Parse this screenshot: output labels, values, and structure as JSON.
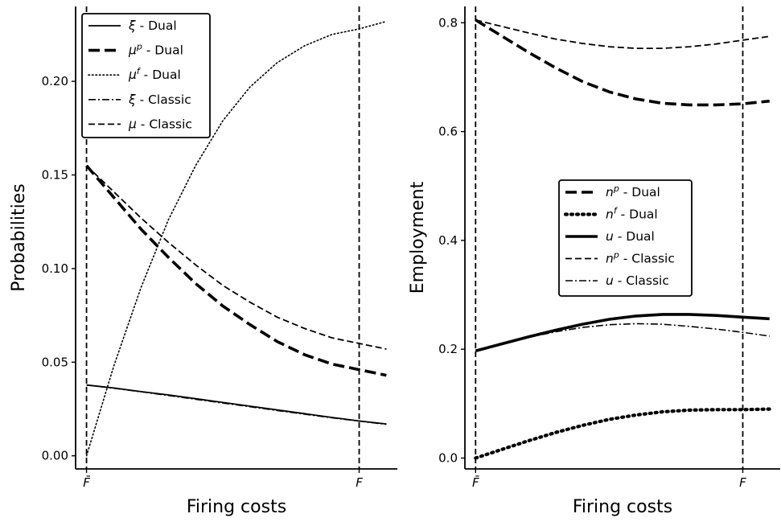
{
  "chart_data": [
    {
      "type": "line",
      "xlabel": "Firing costs",
      "ylabel": "Probabilities",
      "x_tick_labels": [
        "F̄",
        "F"
      ],
      "x_domain": [
        -0.04,
        1.14
      ],
      "x_markers": [
        0,
        1
      ],
      "ylim": [
        -0.007,
        0.24
      ],
      "y_ticks": [
        0.0,
        0.05,
        0.1,
        0.15,
        0.2
      ],
      "y_tick_labels": [
        "0.00",
        "0.05",
        "0.10",
        "0.15",
        "0.20"
      ],
      "grid": false,
      "legend_position": "top-left",
      "x": [
        0,
        0.1,
        0.2,
        0.3,
        0.4,
        0.5,
        0.6,
        0.7,
        0.8,
        0.9,
        1.0,
        1.1
      ],
      "series": [
        {
          "name": "ξ - Dual",
          "style": "solid",
          "width": 1.8,
          "values": [
            0.0378,
            0.0362,
            0.0343,
            0.0325,
            0.0305,
            0.0285,
            0.0265,
            0.0245,
            0.0225,
            0.0205,
            0.0186,
            0.017
          ]
        },
        {
          "name": "μᵖ - Dual",
          "style": "dashed-thick",
          "width": 3.6,
          "values": [
            0.155,
            0.138,
            0.121,
            0.106,
            0.092,
            0.08,
            0.07,
            0.061,
            0.054,
            0.049,
            0.046,
            0.043
          ]
        },
        {
          "name": "μᶠ - Dual",
          "style": "dotted",
          "width": 1.6,
          "values": [
            0.0,
            0.048,
            0.09,
            0.126,
            0.155,
            0.179,
            0.197,
            0.21,
            0.219,
            0.225,
            0.228,
            0.232
          ]
        },
        {
          "name": "ξ - Classic",
          "style": "dashdot",
          "width": 1.6,
          "values": [
            0.0378,
            0.0361,
            0.0342,
            0.0322,
            0.0302,
            0.0282,
            0.0262,
            0.0242,
            0.0222,
            0.0203,
            0.0185,
            0.0168
          ]
        },
        {
          "name": "μ - Classic",
          "style": "dashed",
          "width": 1.8,
          "values": [
            0.155,
            0.141,
            0.127,
            0.114,
            0.102,
            0.091,
            0.082,
            0.074,
            0.068,
            0.063,
            0.06,
            0.057
          ]
        }
      ]
    },
    {
      "type": "line",
      "xlabel": "Firing costs",
      "ylabel": "Employment",
      "x_tick_labels": [
        "F̄",
        "F"
      ],
      "x_domain": [
        -0.04,
        1.14
      ],
      "x_markers": [
        0,
        1
      ],
      "ylim": [
        -0.02,
        0.83
      ],
      "y_ticks": [
        0.0,
        0.2,
        0.4,
        0.6,
        0.8
      ],
      "y_tick_labels": [
        "0.0",
        "0.2",
        "0.4",
        "0.6",
        "0.8"
      ],
      "grid": false,
      "legend_position": "center",
      "x": [
        0,
        0.1,
        0.2,
        0.3,
        0.4,
        0.5,
        0.6,
        0.7,
        0.8,
        0.9,
        1.0,
        1.1
      ],
      "series": [
        {
          "name": "nᵖ - Dual",
          "style": "dashed-thick",
          "width": 3.6,
          "values": [
            0.805,
            0.775,
            0.745,
            0.717,
            0.692,
            0.673,
            0.66,
            0.652,
            0.649,
            0.649,
            0.651,
            0.656
          ]
        },
        {
          "name": "nᶠ - Dual",
          "style": "dotted-thick",
          "width": 4.2,
          "values": [
            0.0,
            0.016,
            0.032,
            0.047,
            0.06,
            0.071,
            0.079,
            0.085,
            0.088,
            0.089,
            0.089,
            0.09
          ]
        },
        {
          "name": "u - Dual",
          "style": "solid-thick",
          "width": 3.6,
          "values": [
            0.197,
            0.21,
            0.223,
            0.235,
            0.246,
            0.255,
            0.261,
            0.264,
            0.264,
            0.262,
            0.259,
            0.256
          ]
        },
        {
          "name": "nᵖ - Classic",
          "style": "dashed",
          "width": 1.8,
          "values": [
            0.805,
            0.793,
            0.781,
            0.77,
            0.762,
            0.756,
            0.753,
            0.753,
            0.756,
            0.761,
            0.768,
            0.775
          ]
        },
        {
          "name": "u - Classic",
          "style": "dashdot",
          "width": 1.6,
          "values": [
            0.197,
            0.21,
            0.222,
            0.232,
            0.24,
            0.245,
            0.247,
            0.246,
            0.242,
            0.237,
            0.231,
            0.224
          ]
        }
      ]
    }
  ]
}
